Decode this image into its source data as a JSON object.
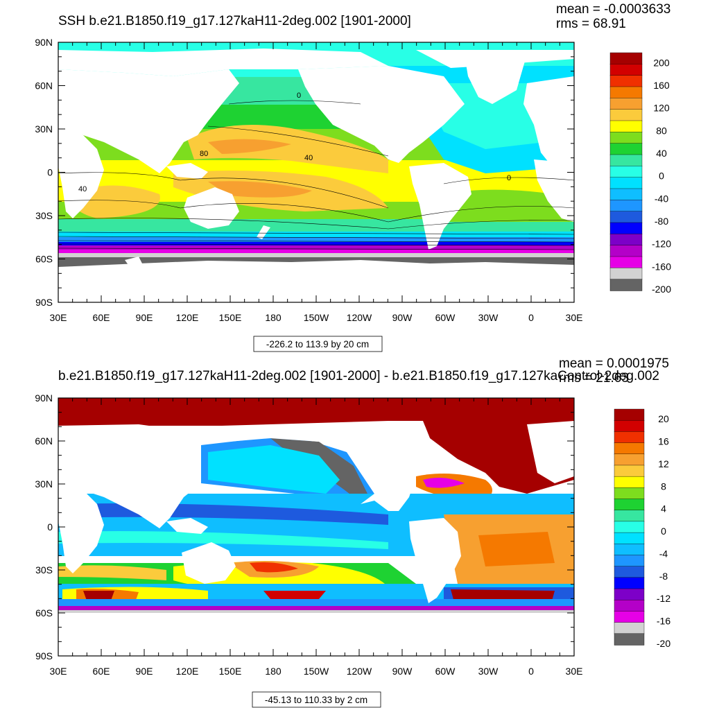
{
  "panels": [
    {
      "title": "SSH b.e21.B1850.f19_g17.127kaH11-2deg.002 [1901-2000]",
      "mean": "mean = -0.0003633",
      "rms": "rms = 68.91",
      "range_label": "-226.2 to 113.9 by 20 cm",
      "lat_labels": [
        "90N",
        "60N",
        "30N",
        "0",
        "30S",
        "60S",
        "90S"
      ],
      "lon_labels": [
        "30E",
        "60E",
        "90E",
        "120E",
        "150E",
        "180",
        "150W",
        "120W",
        "90W",
        "60W",
        "30W",
        "0",
        "30E"
      ],
      "colorbar_labels": [
        "200",
        "160",
        "120",
        "80",
        "40",
        "0",
        "-40",
        "-80",
        "-120",
        "-160",
        "-200"
      ],
      "colorbar_colors": [
        "#a50000",
        "#d20000",
        "#f03000",
        "#f57900",
        "#f7a030",
        "#fbcb3c",
        "#ffff00",
        "#7ddd1e",
        "#1ed232",
        "#37e6a0",
        "#28ffe6",
        "#00e1ff",
        "#0fbeff",
        "#1e96ff",
        "#1e5ade",
        "#0000ff",
        "#7d00c8",
        "#b400c8",
        "#e600e6",
        "#d2d2d2",
        "#646464"
      ],
      "contour_labels": [
        "0",
        "80",
        "40",
        "0",
        "40"
      ]
    },
    {
      "title": "b.e21.B1850.f19_g17.127kaH11-2deg.002 [1901-2000] - b.e21.B1850.f19_g17.127kaControl-2deg.002",
      "mean": "mean = 0.0001975",
      "rms": "rms = 21.63",
      "range_label": "-45.13 to 110.33 by 2 cm",
      "lat_labels": [
        "90N",
        "60N",
        "30N",
        "0",
        "30S",
        "60S",
        "90S"
      ],
      "lon_labels": [
        "30E",
        "60E",
        "90E",
        "120E",
        "150E",
        "180",
        "150W",
        "120W",
        "90W",
        "60W",
        "30W",
        "0",
        "30E"
      ],
      "colorbar_labels": [
        "20",
        "16",
        "12",
        "8",
        "4",
        "0",
        "-4",
        "-8",
        "-12",
        "-16",
        "-20"
      ],
      "colorbar_colors": [
        "#a50000",
        "#d20000",
        "#f03000",
        "#f57900",
        "#f7a030",
        "#fbcb3c",
        "#ffff00",
        "#7ddd1e",
        "#1ed232",
        "#37e6a0",
        "#28ffe6",
        "#00e1ff",
        "#0fbeff",
        "#1e96ff",
        "#1e5ade",
        "#0000ff",
        "#7d00c8",
        "#b400c8",
        "#e600e6",
        "#d2d2d2",
        "#646464"
      ]
    }
  ],
  "colors": {
    "land": "#ffffff",
    "frame": "#000000"
  }
}
